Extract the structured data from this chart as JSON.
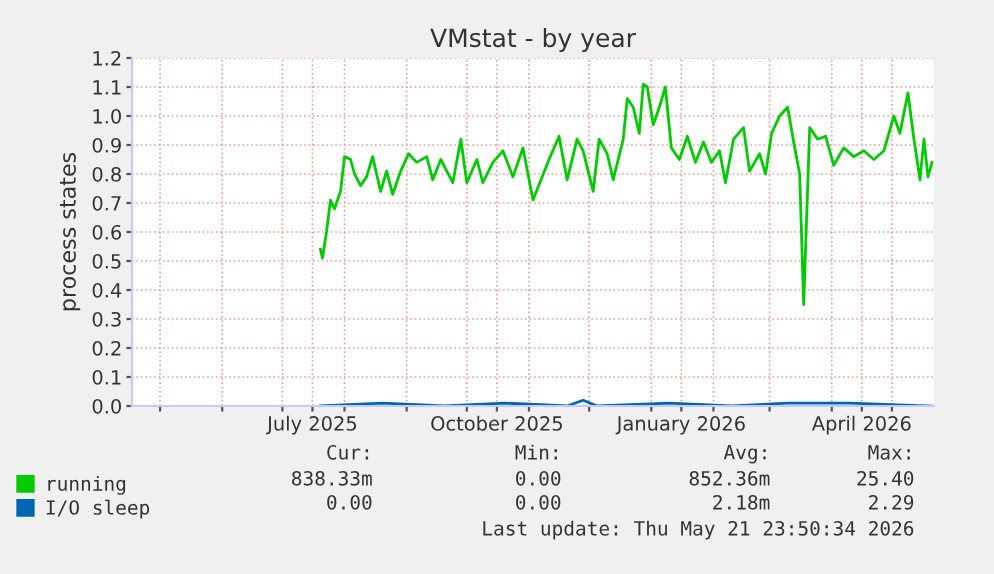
{
  "chart_data": {
    "type": "line",
    "title": "VMstat - by year",
    "ylabel": "process states",
    "xlim": [
      "2025-04-17",
      "2026-05-22"
    ],
    "xticks": [
      {
        "value": "2025-05-01",
        "label": null
      },
      {
        "value": "2025-06-01",
        "label": null
      },
      {
        "value": "2025-07-01",
        "label": null
      },
      {
        "value": "2025-07-16",
        "label": "July 2025"
      },
      {
        "value": "2025-08-01",
        "label": null
      },
      {
        "value": "2025-09-01",
        "label": null
      },
      {
        "value": "2025-10-01",
        "label": null
      },
      {
        "value": "2025-10-16",
        "label": "October 2025"
      },
      {
        "value": "2025-11-01",
        "label": null
      },
      {
        "value": "2025-12-01",
        "label": null
      },
      {
        "value": "2026-01-01",
        "label": null
      },
      {
        "value": "2026-01-16",
        "label": "January 2026"
      },
      {
        "value": "2026-02-01",
        "label": null
      },
      {
        "value": "2026-03-01",
        "label": null
      },
      {
        "value": "2026-04-01",
        "label": null
      },
      {
        "value": "2026-04-16",
        "label": "April 2026"
      },
      {
        "value": "2026-05-01",
        "label": null
      }
    ],
    "ylim": [
      0,
      1.2
    ],
    "yticks": [
      {
        "value": 0,
        "label": "0.0"
      },
      {
        "value": 0.1,
        "label": "0.1"
      },
      {
        "value": 0.2,
        "label": "0.2"
      },
      {
        "value": 0.3,
        "label": "0.3"
      },
      {
        "value": 0.4,
        "label": "0.4"
      },
      {
        "value": 0.5,
        "label": "0.5"
      },
      {
        "value": 0.6,
        "label": "0.6"
      },
      {
        "value": 0.7,
        "label": "0.7"
      },
      {
        "value": 0.8,
        "label": "0.8"
      },
      {
        "value": 0.9,
        "label": "0.9"
      },
      {
        "value": 1.0,
        "label": "1.0"
      },
      {
        "value": 1.1,
        "label": "1.1"
      },
      {
        "value": 1.2,
        "label": "1.2"
      }
    ],
    "grid": true,
    "legend": "bottom",
    "line_style": "solid",
    "series": [
      {
        "name": "running",
        "color": "#00cc00",
        "x": [
          "2025-07-20",
          "2025-07-21",
          "2025-07-23",
          "2025-07-25",
          "2025-07-27",
          "2025-07-30",
          "2025-08-01",
          "2025-08-04",
          "2025-08-06",
          "2025-08-09",
          "2025-08-12",
          "2025-08-15",
          "2025-08-19",
          "2025-08-22",
          "2025-08-25",
          "2025-08-29",
          "2025-09-02",
          "2025-09-06",
          "2025-09-11",
          "2025-09-14",
          "2025-09-18",
          "2025-09-21",
          "2025-09-24",
          "2025-09-28",
          "2025-10-01",
          "2025-10-06",
          "2025-10-09",
          "2025-10-14",
          "2025-10-19",
          "2025-10-24",
          "2025-10-29",
          "2025-11-03",
          "2025-11-07",
          "2025-11-11",
          "2025-11-16",
          "2025-11-20",
          "2025-11-25",
          "2025-11-28",
          "2025-12-03",
          "2025-12-06",
          "2025-12-10",
          "2025-12-13",
          "2025-12-18",
          "2025-12-20",
          "2025-12-23",
          "2025-12-26",
          "2025-12-28",
          "2025-12-30",
          "2026-01-02",
          "2026-01-05",
          "2026-01-08",
          "2026-01-11",
          "2026-01-15",
          "2026-01-19",
          "2026-01-23",
          "2026-01-27",
          "2026-01-31",
          "2026-02-04",
          "2026-02-07",
          "2026-02-11",
          "2026-02-16",
          "2026-02-19",
          "2026-02-24",
          "2026-02-27",
          "2026-03-02",
          "2026-03-06",
          "2026-03-10",
          "2026-03-13",
          "2026-03-16",
          "2026-03-18",
          "2026-03-21",
          "2026-03-25",
          "2026-03-29",
          "2026-04-02",
          "2026-04-07",
          "2026-04-12",
          "2026-04-17",
          "2026-04-22",
          "2026-04-27",
          "2026-05-02",
          "2026-05-05",
          "2026-05-09",
          "2026-05-12",
          "2026-05-15",
          "2026-05-17",
          "2026-05-19",
          "2026-05-21"
        ],
        "values": [
          0.54,
          0.51,
          0.6,
          0.71,
          0.68,
          0.74,
          0.86,
          0.85,
          0.8,
          0.76,
          0.79,
          0.86,
          0.74,
          0.81,
          0.73,
          0.81,
          0.87,
          0.84,
          0.86,
          0.78,
          0.85,
          0.81,
          0.77,
          0.92,
          0.77,
          0.85,
          0.77,
          0.84,
          0.88,
          0.79,
          0.89,
          0.71,
          0.78,
          0.85,
          0.93,
          0.78,
          0.92,
          0.88,
          0.74,
          0.92,
          0.87,
          0.78,
          0.92,
          1.06,
          1.03,
          0.94,
          1.11,
          1.1,
          0.97,
          1.03,
          1.1,
          0.89,
          0.85,
          0.93,
          0.84,
          0.91,
          0.84,
          0.88,
          0.77,
          0.92,
          0.96,
          0.81,
          0.87,
          0.8,
          0.94,
          1.0,
          1.03,
          0.91,
          0.8,
          0.35,
          0.96,
          0.92,
          0.93,
          0.83,
          0.89,
          0.86,
          0.88,
          0.85,
          0.88,
          1.0,
          0.94,
          1.08,
          0.92,
          0.78,
          0.92,
          0.79,
          0.84
        ]
      },
      {
        "name": "I/O sleep",
        "color": "#0066b3",
        "x": [
          "2025-07-20",
          "2025-08-20",
          "2025-09-20",
          "2025-10-20",
          "2025-11-20",
          "2025-11-28",
          "2025-12-05",
          "2026-01-10",
          "2026-02-10",
          "2026-03-10",
          "2026-04-10",
          "2026-05-21"
        ],
        "values": [
          0,
          0.01,
          0,
          0.01,
          0,
          0.02,
          0,
          0.01,
          0,
          0.01,
          0.01,
          0
        ]
      }
    ],
    "annotations": [
      "Cur:",
      "Min:",
      "Avg:",
      "Max:",
      "838.33m",
      "0.00",
      "852.36m",
      "25.40",
      "0.00",
      "0.00",
      "2.18m",
      "2.29",
      "Last update: Thu May 21 23:50:34 2026"
    ]
  }
}
